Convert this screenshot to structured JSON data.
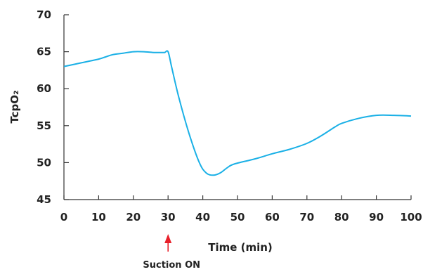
{
  "chart_data": {
    "type": "line",
    "title": "",
    "xlabel": "Time (min)",
    "ylabel": "TcpO₂",
    "xlim": [
      0,
      100
    ],
    "ylim": [
      45,
      70
    ],
    "xticks": [
      0,
      10,
      20,
      30,
      40,
      50,
      60,
      70,
      80,
      90,
      100
    ],
    "yticks": [
      45,
      50,
      55,
      60,
      65,
      70
    ],
    "grid": false,
    "series": [
      {
        "color": "#1ab0e6",
        "x": [
          0,
          5,
          10,
          12,
          14,
          17,
          20,
          23,
          26,
          28,
          29,
          30,
          31,
          33,
          36,
          39,
          41,
          43,
          45,
          47,
          49,
          55,
          60,
          65,
          70,
          74,
          78,
          80,
          85,
          90,
          95,
          100
        ],
        "y": [
          63.0,
          63.5,
          64.0,
          64.3,
          64.6,
          64.8,
          65.0,
          65.0,
          64.9,
          64.9,
          64.9,
          65.0,
          63.0,
          59.0,
          54.0,
          50.0,
          48.6,
          48.3,
          48.6,
          49.3,
          49.8,
          50.5,
          51.2,
          51.8,
          52.6,
          53.6,
          54.8,
          55.3,
          56.0,
          56.4,
          56.4,
          56.3
        ]
      }
    ],
    "annotations": [
      {
        "text": "Suction ON",
        "x": 30,
        "arrow_color": "#e8202a"
      }
    ]
  }
}
